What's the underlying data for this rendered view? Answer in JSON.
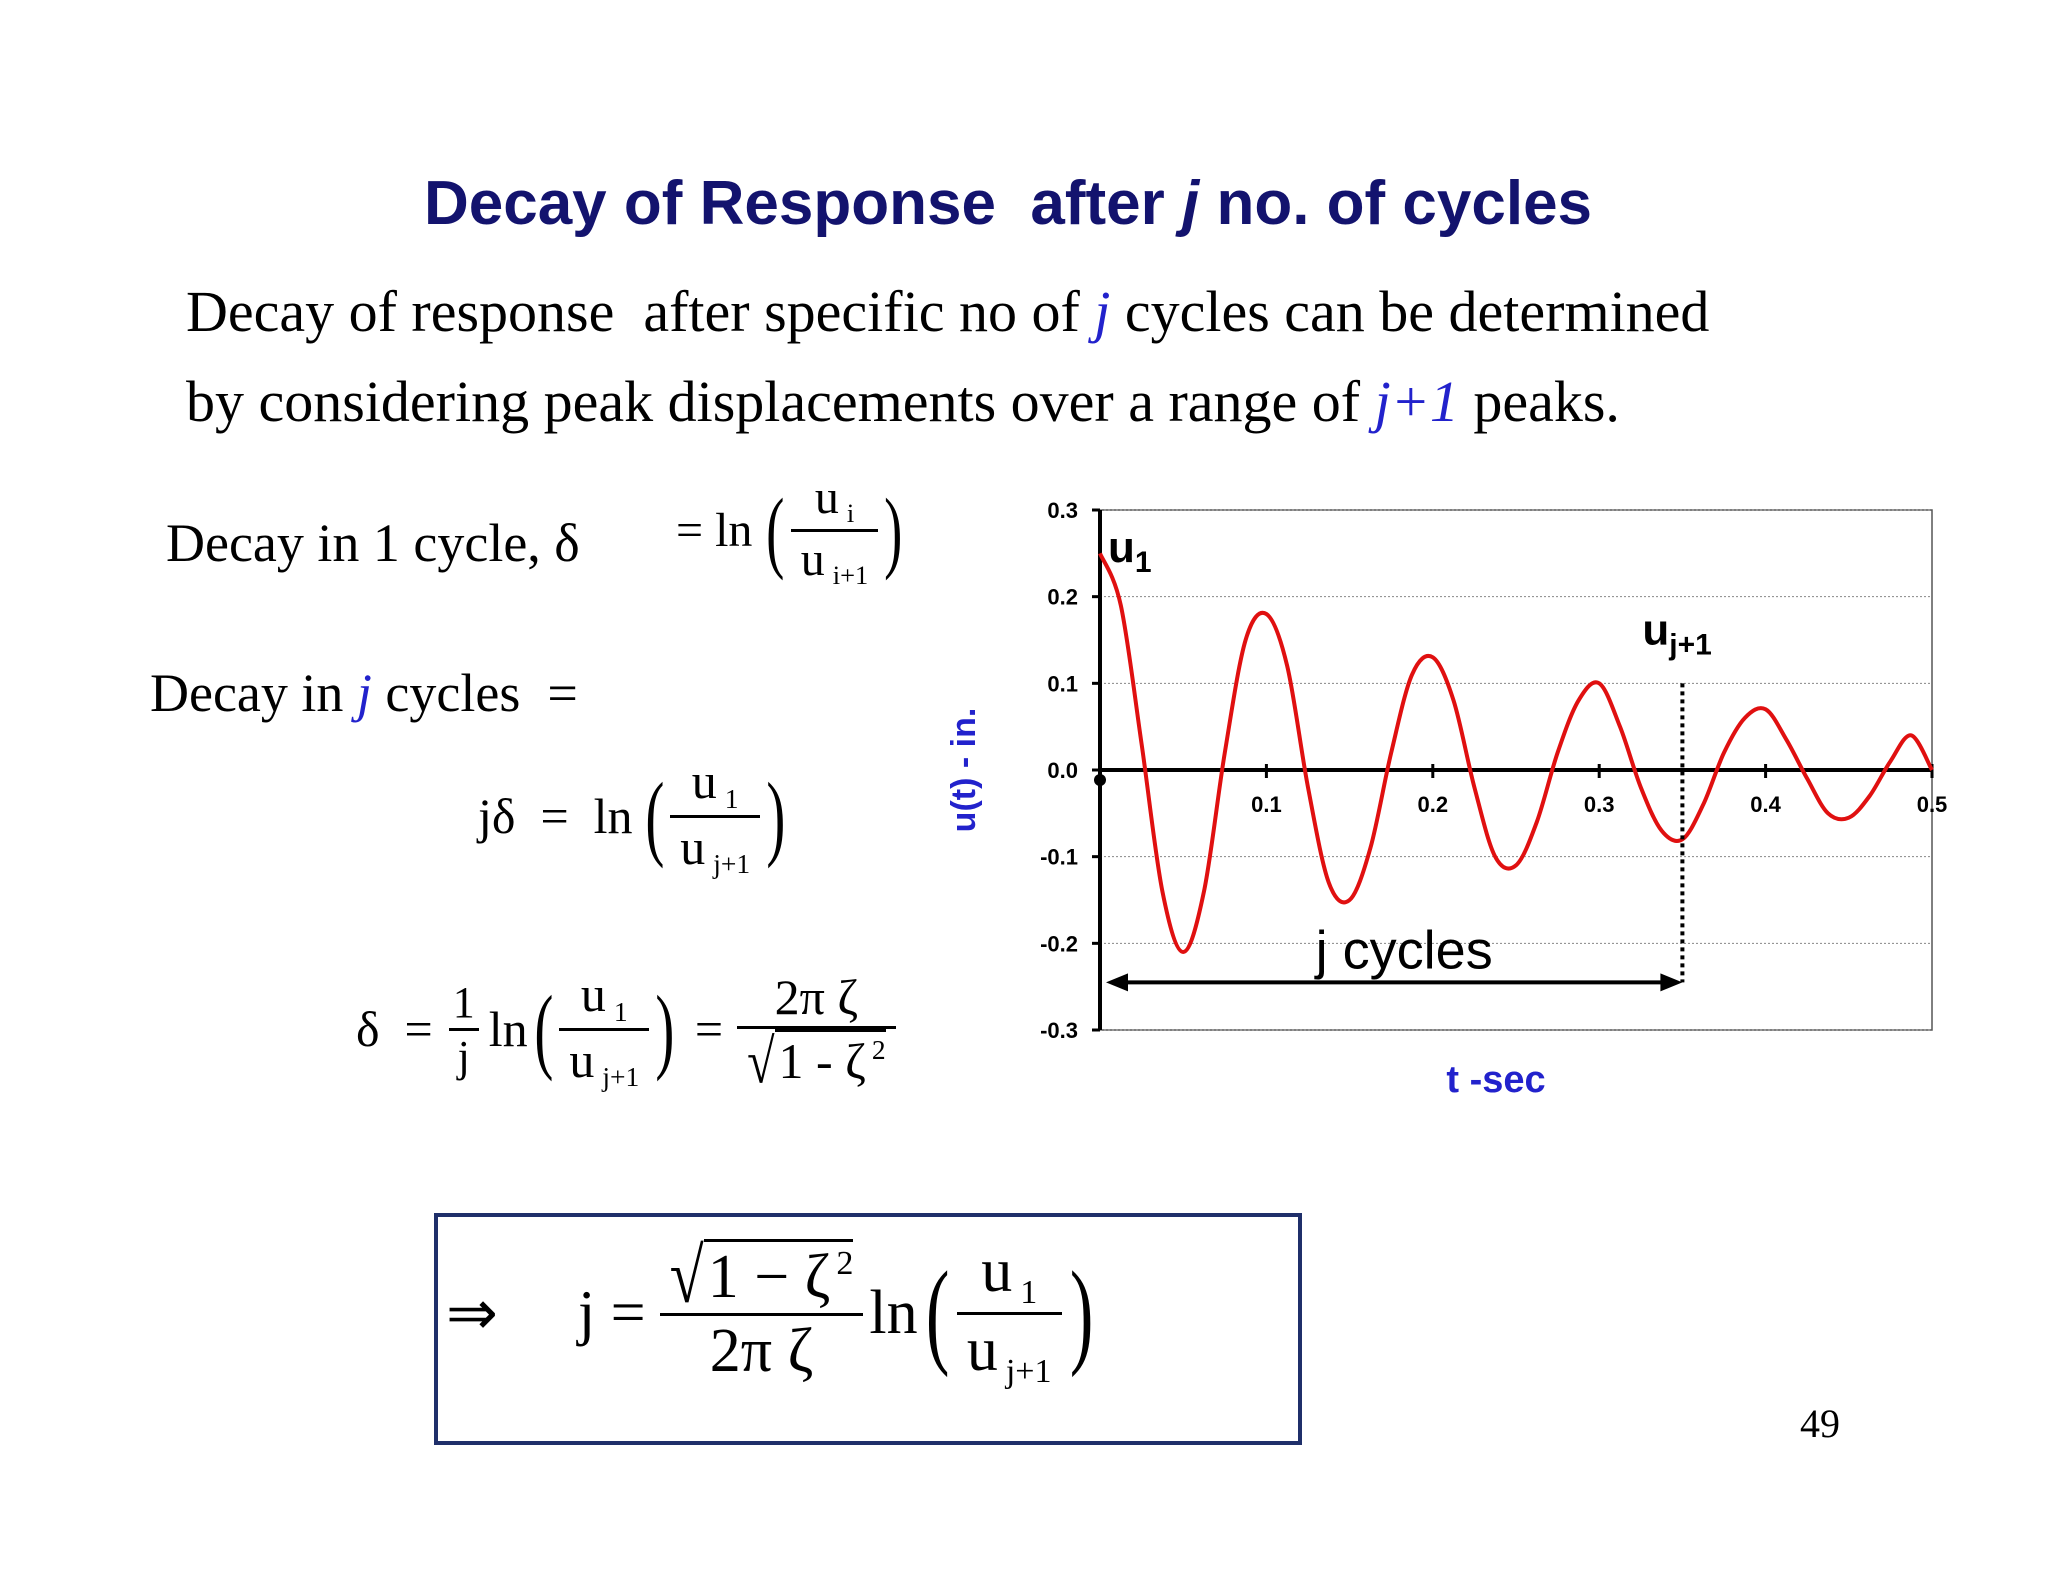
{
  "slide": {
    "title_part1": "Decay of Response  after ",
    "title_j": "j",
    "title_part2": " no. of cycles",
    "line1_a": "Decay of response  after specific no of ",
    "line1_j": "j",
    "line1_b": " cycles can be determined",
    "line2_a": "by considering peak displacements over a range of ",
    "line2_j": "j+1",
    "line2_b": " peaks.",
    "page_number": "49"
  },
  "equations": {
    "eq1_label": "Decay in 1 cycle, δ",
    "eq1_rhs": "= ln",
    "eq1_num": "u",
    "eq1_num_sub": "i",
    "eq1_den": "u",
    "eq1_den_sub": "i+1",
    "eq2_label_a": "Decay in ",
    "eq2_label_j": "j",
    "eq2_label_b": " cycles  =",
    "eq3_lhs": "jδ  =  ln",
    "eq3_num": "u",
    "eq3_num_sub": "1",
    "eq3_den": "u",
    "eq3_den_sub": "j+1",
    "eq4_lhs": "δ  =",
    "eq4_one": "1",
    "eq4_j": "j",
    "eq4_ln": "ln",
    "eq4_num": "u",
    "eq4_num_sub": "1",
    "eq4_den": "u",
    "eq4_den_sub": "j+1",
    "eq4_eq": "=",
    "eq4_rnum": "2π ζ",
    "eq4_rden": "1 - ζ",
    "eq4_rden_sup": "2",
    "box_arrow": "⇒",
    "box_lhs": "j =",
    "box_num": "1 − ζ",
    "box_num_sup": "2",
    "box_den": "2π ζ",
    "box_ln": "ln",
    "box_u_num": "u",
    "box_u_num_sub": "1",
    "box_u_den": "u",
    "box_u_den_sub": "j+1"
  },
  "chart_data": {
    "type": "line",
    "xlabel": "t -sec",
    "ylabel": "u(t) - in.",
    "xlim": [
      0,
      0.5
    ],
    "ylim": [
      -0.3,
      0.3
    ],
    "x_ticks": [
      "0",
      "0.1",
      "0.2",
      "0.3",
      "0.4",
      "0.5"
    ],
    "y_ticks": [
      "0.3",
      "0.2",
      "0.1",
      "0.0",
      "-0.1",
      "-0.2",
      "-0.3"
    ],
    "grid": "horizontal",
    "series": [
      {
        "color": "#e01010",
        "x": [
          0.0,
          0.0125,
          0.025,
          0.0375,
          0.05,
          0.0625,
          0.075,
          0.0875,
          0.1,
          0.1125,
          0.125,
          0.1375,
          0.15,
          0.1625,
          0.175,
          0.1875,
          0.2,
          0.2125,
          0.225,
          0.2375,
          0.25,
          0.2625,
          0.275,
          0.2875,
          0.3,
          0.3125,
          0.325,
          0.3375,
          0.35,
          0.3625,
          0.375,
          0.3875,
          0.4,
          0.4125,
          0.425,
          0.4375,
          0.45,
          0.4625,
          0.475,
          0.4875,
          0.5
        ],
        "y": [
          0.25,
          0.19,
          0.03,
          -0.14,
          -0.21,
          -0.14,
          0.02,
          0.15,
          0.18,
          0.12,
          -0.02,
          -0.13,
          -0.15,
          -0.09,
          0.02,
          0.11,
          0.13,
          0.08,
          -0.02,
          -0.1,
          -0.11,
          -0.06,
          0.02,
          0.08,
          0.1,
          0.05,
          -0.02,
          -0.07,
          -0.08,
          -0.04,
          0.02,
          0.06,
          0.07,
          0.035,
          -0.01,
          -0.05,
          -0.055,
          -0.03,
          0.01,
          0.04,
          0.0
        ]
      }
    ],
    "annotations": {
      "u1_label": "u",
      "u1_sub": "1",
      "uj1_label": "u",
      "uj1_sub": "j+1",
      "span_label": "j cycles",
      "span_start_t": 0.0,
      "span_end_t": 0.35
    }
  }
}
